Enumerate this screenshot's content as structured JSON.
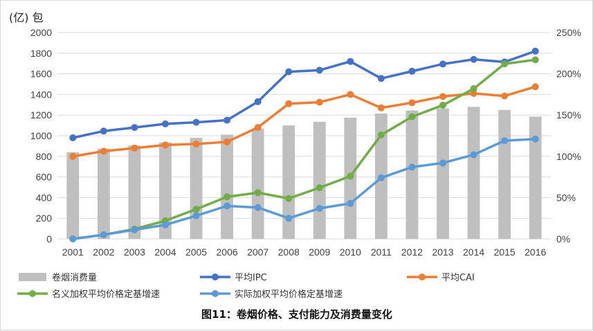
{
  "chart_data": {
    "type": "bar+line",
    "title": "图11：卷烟价格、支付能力及消费量变化",
    "ylabel_left": "(亿) 包",
    "ylim_left": [
      0,
      2000
    ],
    "yticks_left": [
      "0",
      "200",
      "400",
      "600",
      "800",
      "1000",
      "1200",
      "1400",
      "1600",
      "1800",
      "2000"
    ],
    "ylim_right": [
      0,
      250
    ],
    "yticks_right": [
      "0%",
      "50%",
      "100%",
      "150%",
      "200%",
      "250%"
    ],
    "categories": [
      "2001",
      "2002",
      "2003",
      "2004",
      "2005",
      "2006",
      "2007",
      "2008",
      "2009",
      "2010",
      "2011",
      "2012",
      "2013",
      "2014",
      "2015",
      "2016"
    ],
    "series": [
      {
        "name": "卷烟消费量",
        "kind": "bar",
        "axis": "left",
        "color": "#bfbfbf",
        "values": [
          840,
          875,
          905,
          935,
          980,
          1010,
          1070,
          1100,
          1135,
          1175,
          1215,
          1245,
          1265,
          1280,
          1250,
          1185
        ]
      },
      {
        "name": "平均IPC",
        "kind": "line",
        "axis": "left",
        "color": "#4472c4",
        "values": [
          980,
          1045,
          1080,
          1115,
          1130,
          1150,
          1330,
          1620,
          1635,
          1720,
          1555,
          1625,
          1695,
          1740,
          1715,
          1820
        ]
      },
      {
        "name": "平均CAI",
        "kind": "line",
        "axis": "left",
        "color": "#ed7d31",
        "values": [
          800,
          850,
          880,
          910,
          920,
          940,
          1080,
          1310,
          1325,
          1400,
          1270,
          1320,
          1380,
          1410,
          1385,
          1475
        ]
      },
      {
        "name": "名义加权平均价格定基增速",
        "kind": "line",
        "axis": "right",
        "color": "#70ad47",
        "values": [
          0,
          5,
          12,
          22,
          36,
          51,
          56,
          49,
          62,
          76,
          126,
          148,
          162,
          182,
          212,
          217
        ]
      },
      {
        "name": "实际加权平均价格定基增速",
        "kind": "line",
        "axis": "right",
        "color": "#5b9bd5",
        "values": [
          0,
          5,
          11,
          17,
          28,
          40,
          38,
          25,
          37,
          43,
          74,
          87,
          92,
          102,
          119,
          121
        ]
      }
    ],
    "legend_position": "bottom",
    "grid": true
  }
}
